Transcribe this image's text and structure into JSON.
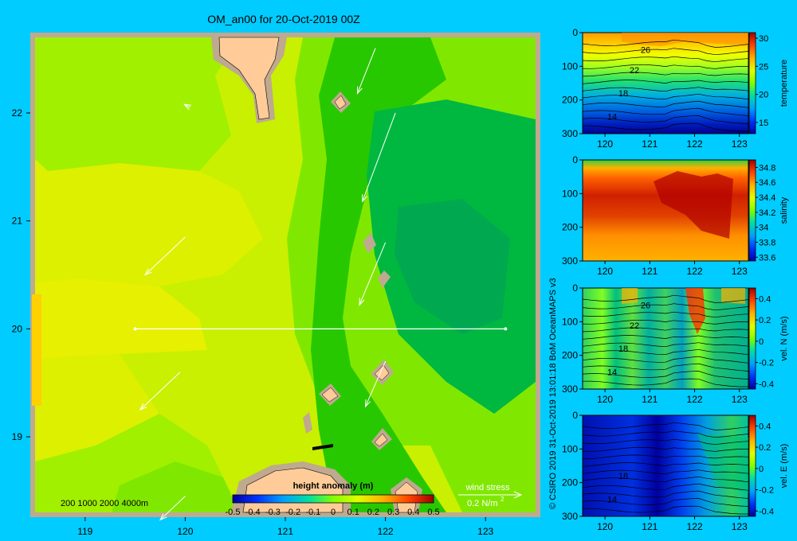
{
  "title": "OM_an00 for 20-Oct-2019 00Z",
  "credit": "© CSIRO 2019   31-Oct-2019 13:01:18 BoM OceanMAPS v3",
  "colors": {
    "background": "#00ccff",
    "land": "#ffcc99",
    "shelf": "#bfa98f"
  },
  "chart_data": [
    {
      "type": "heatmap",
      "name": "map",
      "x_ticks": [
        "119",
        "120",
        "121",
        "122",
        "123"
      ],
      "y_ticks": [
        "22",
        "21",
        "20",
        "19"
      ],
      "xlim": [
        118.5,
        123.5
      ],
      "ylim": [
        18.3,
        22.7
      ],
      "colorbar": {
        "label": "height anomaly  (m)",
        "ticks": [
          "-0.5",
          "-0.4",
          "-0.3",
          "-0.2",
          "-0.1",
          "0",
          "0.1",
          "0.2",
          "0.3",
          "0.4",
          "0.5"
        ],
        "range": [
          -0.5,
          0.5
        ]
      },
      "depth_legend": "200  1000  2000  4000m",
      "wind_legend": {
        "title": "wind stress",
        "value": "0.2 N/m",
        "exponent": "2"
      },
      "section_line": {
        "lat": 20,
        "lon_start": 119.5,
        "lon_end": 123.2
      },
      "wind_vectors": [
        {
          "lon": 121.9,
          "lat": 22.6,
          "dlon": -0.18,
          "dlat": -0.42
        },
        {
          "lon": 120.05,
          "lat": 22.05,
          "dlon": -0.06,
          "dlat": 0.03
        },
        {
          "lon": 122.1,
          "lat": 22.0,
          "dlon": -0.33,
          "dlat": -0.82
        },
        {
          "lon": 120.0,
          "lat": 20.85,
          "dlon": -0.4,
          "dlat": -0.35
        },
        {
          "lon": 122.0,
          "lat": 20.8,
          "dlon": -0.26,
          "dlat": -0.58
        },
        {
          "lon": 119.95,
          "lat": 19.6,
          "dlon": -0.4,
          "dlat": -0.35
        },
        {
          "lon": 122.0,
          "lat": 19.7,
          "dlon": -0.2,
          "dlat": -0.42
        },
        {
          "lon": 120.0,
          "lat": 18.45,
          "dlon": -0.25,
          "dlat": -0.22
        }
      ]
    },
    {
      "type": "heatmap",
      "name": "temperature",
      "ylabel": "temperature",
      "x_ticks": [
        "120",
        "121",
        "122",
        "123"
      ],
      "y_ticks": [
        "0",
        "100",
        "200",
        "300"
      ],
      "xlim": [
        119.5,
        123.2
      ],
      "ylim": [
        0,
        300
      ],
      "colorbar_ticks": [
        "30",
        "25",
        "20",
        "15"
      ],
      "colorbar_range": [
        13,
        31
      ],
      "contour_labels": [
        "26",
        "22",
        "18",
        "14"
      ]
    },
    {
      "type": "heatmap",
      "name": "salinity",
      "ylabel": "salinity",
      "x_ticks": [
        "120",
        "121",
        "122",
        "123"
      ],
      "y_ticks": [
        "0",
        "100",
        "200",
        "300"
      ],
      "xlim": [
        119.5,
        123.2
      ],
      "ylim": [
        0,
        300
      ],
      "colorbar_ticks": [
        "34.8",
        "34.6",
        "34.4",
        "34.2",
        "34",
        "33.8",
        "33.6"
      ],
      "colorbar_range": [
        33.55,
        34.9
      ]
    },
    {
      "type": "heatmap",
      "name": "vel-n",
      "ylabel": "vel. N (m/s)",
      "x_ticks": [
        "120",
        "121",
        "122",
        "123"
      ],
      "y_ticks": [
        "0",
        "100",
        "200",
        "300"
      ],
      "xlim": [
        119.5,
        123.2
      ],
      "ylim": [
        0,
        300
      ],
      "colorbar_ticks": [
        "0.4",
        "0.2",
        "0",
        "-0.2",
        "-0.4"
      ],
      "colorbar_range": [
        -0.45,
        0.5
      ],
      "contour_labels": [
        "26",
        "22",
        "18",
        "14"
      ]
    },
    {
      "type": "heatmap",
      "name": "vel-e",
      "ylabel": "vel. E (m/s)",
      "x_ticks": [
        "120",
        "121",
        "122",
        "123"
      ],
      "y_ticks": [
        "0",
        "100",
        "200",
        "300"
      ],
      "xlim": [
        119.5,
        123.2
      ],
      "ylim": [
        0,
        300
      ],
      "colorbar_ticks": [
        "0.4",
        "0.2",
        "0",
        "-0.2",
        "-0.4"
      ],
      "colorbar_range": [
        -0.45,
        0.5
      ],
      "contour_labels": [
        "18",
        "14"
      ]
    }
  ]
}
